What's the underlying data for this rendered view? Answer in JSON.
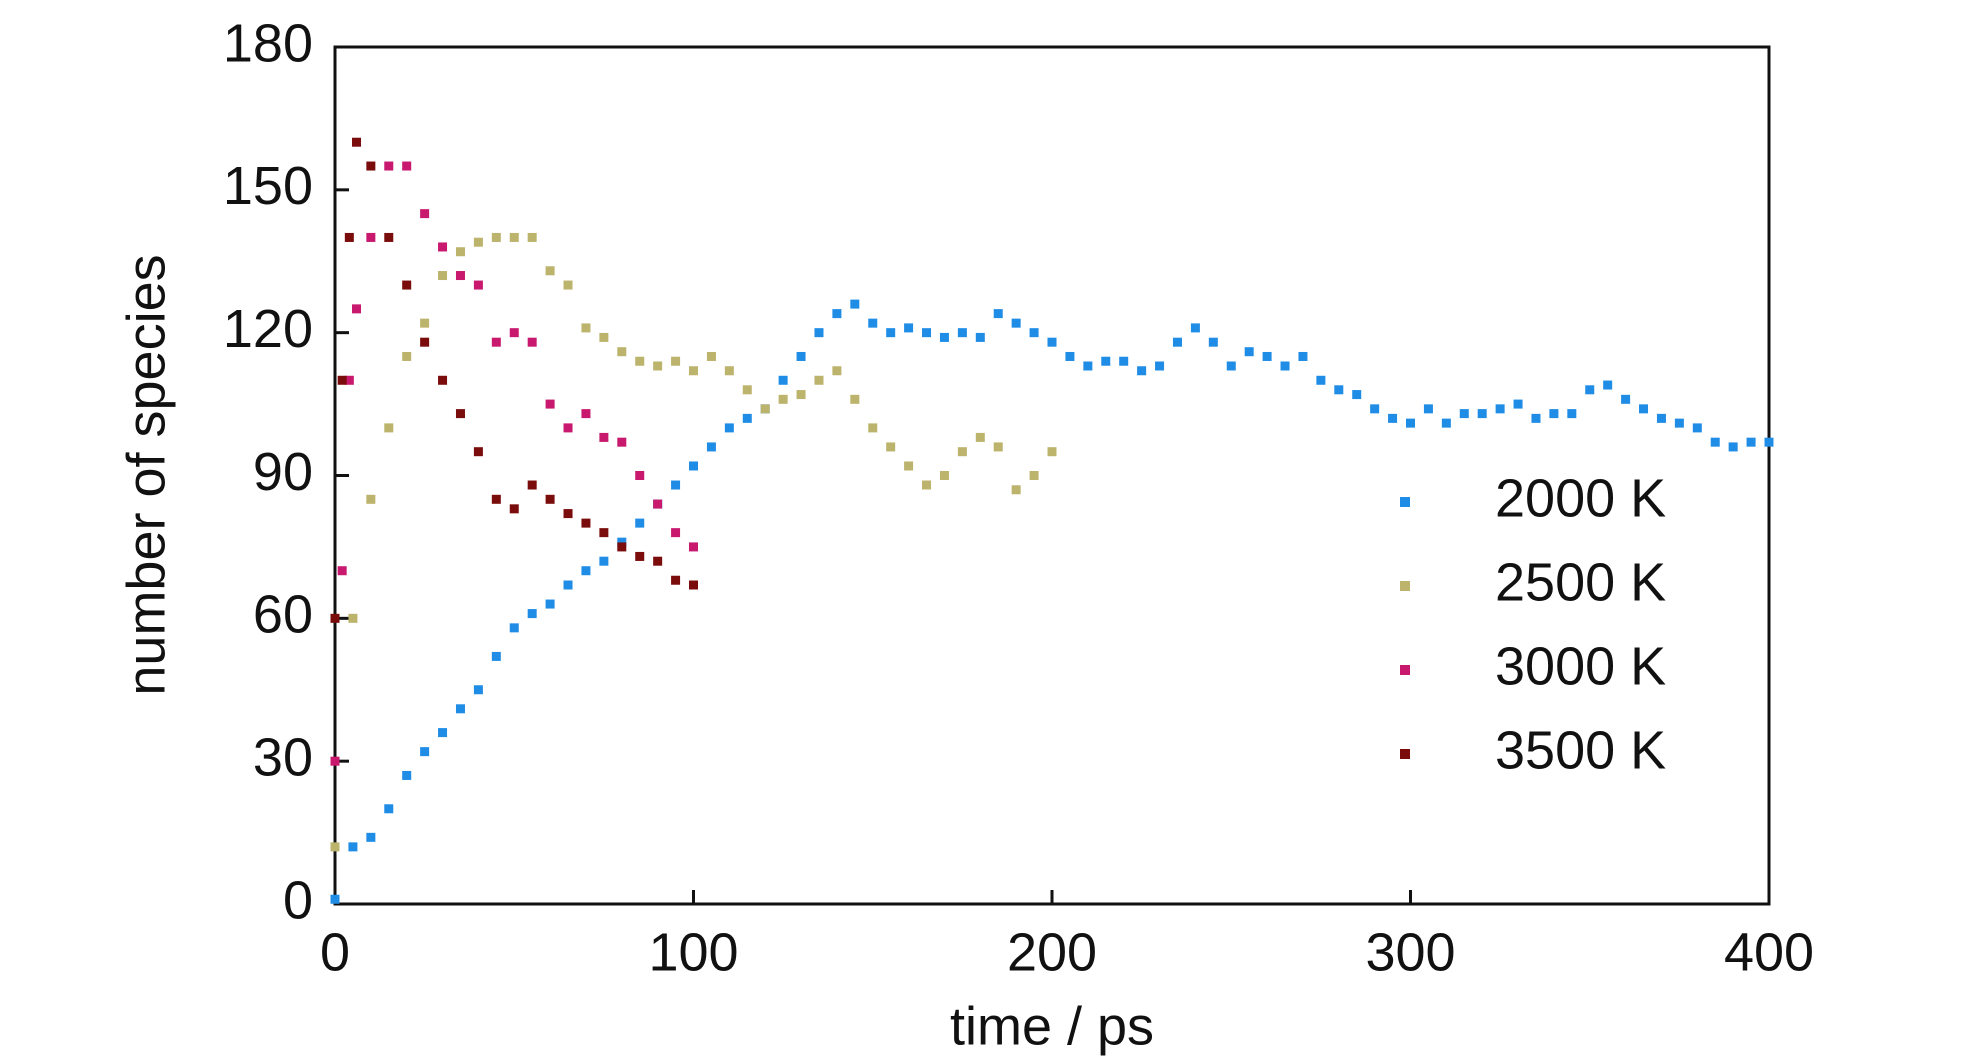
{
  "chart_data": {
    "type": "scatter",
    "x_label": "time / ps",
    "y_label": "number of species",
    "xlim": [
      0,
      400
    ],
    "xticks": [
      0,
      100,
      200,
      300,
      400
    ],
    "ylim": [
      0,
      180
    ],
    "yticks": [
      0,
      30,
      60,
      90,
      120,
      150,
      180
    ],
    "legend": "right",
    "series": [
      {
        "name": "2000 K",
        "color": "#1f8ce6",
        "x": [
          0,
          5,
          10,
          15,
          20,
          25,
          30,
          35,
          40,
          45,
          50,
          55,
          60,
          65,
          70,
          75,
          80,
          85,
          90,
          95,
          100,
          105,
          110,
          115,
          120,
          125,
          130,
          135,
          140,
          145,
          150,
          155,
          160,
          165,
          170,
          175,
          180,
          185,
          190,
          195,
          200,
          205,
          210,
          215,
          220,
          225,
          230,
          235,
          240,
          245,
          250,
          255,
          260,
          265,
          270,
          275,
          280,
          285,
          290,
          295,
          300,
          305,
          310,
          315,
          320,
          325,
          330,
          335,
          340,
          345,
          350,
          355,
          360,
          365,
          370,
          375,
          380,
          385,
          390,
          395,
          400
        ],
        "values": [
          1,
          12,
          14,
          20,
          27,
          32,
          36,
          41,
          45,
          52,
          58,
          61,
          63,
          67,
          70,
          72,
          76,
          80,
          84,
          88,
          92,
          96,
          100,
          102,
          104,
          110,
          115,
          120,
          124,
          126,
          122,
          120,
          121,
          120,
          119,
          120,
          119,
          124,
          122,
          120,
          118,
          115,
          113,
          114,
          114,
          112,
          113,
          118,
          121,
          118,
          113,
          116,
          115,
          113,
          115,
          110,
          108,
          107,
          104,
          102,
          101,
          104,
          101,
          103,
          103,
          104,
          105,
          102,
          103,
          103,
          108,
          109,
          106,
          104,
          102,
          101,
          100,
          97,
          96,
          97,
          97
        ]
      },
      {
        "name": "2500 K",
        "color": "#bcb36c",
        "x": [
          0,
          5,
          10,
          15,
          20,
          25,
          30,
          35,
          40,
          45,
          50,
          55,
          60,
          65,
          70,
          75,
          80,
          85,
          90,
          95,
          100,
          105,
          110,
          115,
          120,
          125,
          130,
          135,
          140,
          145,
          150,
          155,
          160,
          165,
          170,
          175,
          180,
          185,
          190,
          195,
          200
        ],
        "values": [
          12,
          60,
          85,
          100,
          115,
          122,
          132,
          137,
          139,
          140,
          140,
          140,
          133,
          130,
          121,
          119,
          116,
          114,
          113,
          114,
          112,
          115,
          112,
          108,
          104,
          106,
          107,
          110,
          112,
          106,
          100,
          96,
          92,
          88,
          90,
          95,
          98,
          96,
          87,
          90,
          95
        ]
      },
      {
        "name": "3000 K",
        "color": "#c8196e",
        "x": [
          0,
          2,
          4,
          6,
          10,
          15,
          20,
          25,
          30,
          35,
          40,
          45,
          50,
          55,
          60,
          65,
          70,
          75,
          80,
          85,
          90,
          95,
          100
        ],
        "values": [
          30,
          70,
          110,
          125,
          140,
          155,
          155,
          145,
          138,
          132,
          130,
          118,
          120,
          118,
          105,
          100,
          103,
          98,
          97,
          90,
          84,
          78,
          75
        ]
      },
      {
        "name": "3500 K",
        "color": "#7a0c0c",
        "x": [
          0,
          2,
          4,
          6,
          10,
          15,
          20,
          25,
          30,
          35,
          40,
          45,
          50,
          55,
          60,
          65,
          70,
          75,
          80,
          85,
          90,
          95,
          100
        ],
        "values": [
          60,
          110,
          140,
          160,
          155,
          140,
          130,
          118,
          110,
          103,
          95,
          85,
          83,
          88,
          85,
          82,
          80,
          78,
          75,
          73,
          72,
          68,
          67
        ]
      }
    ]
  }
}
